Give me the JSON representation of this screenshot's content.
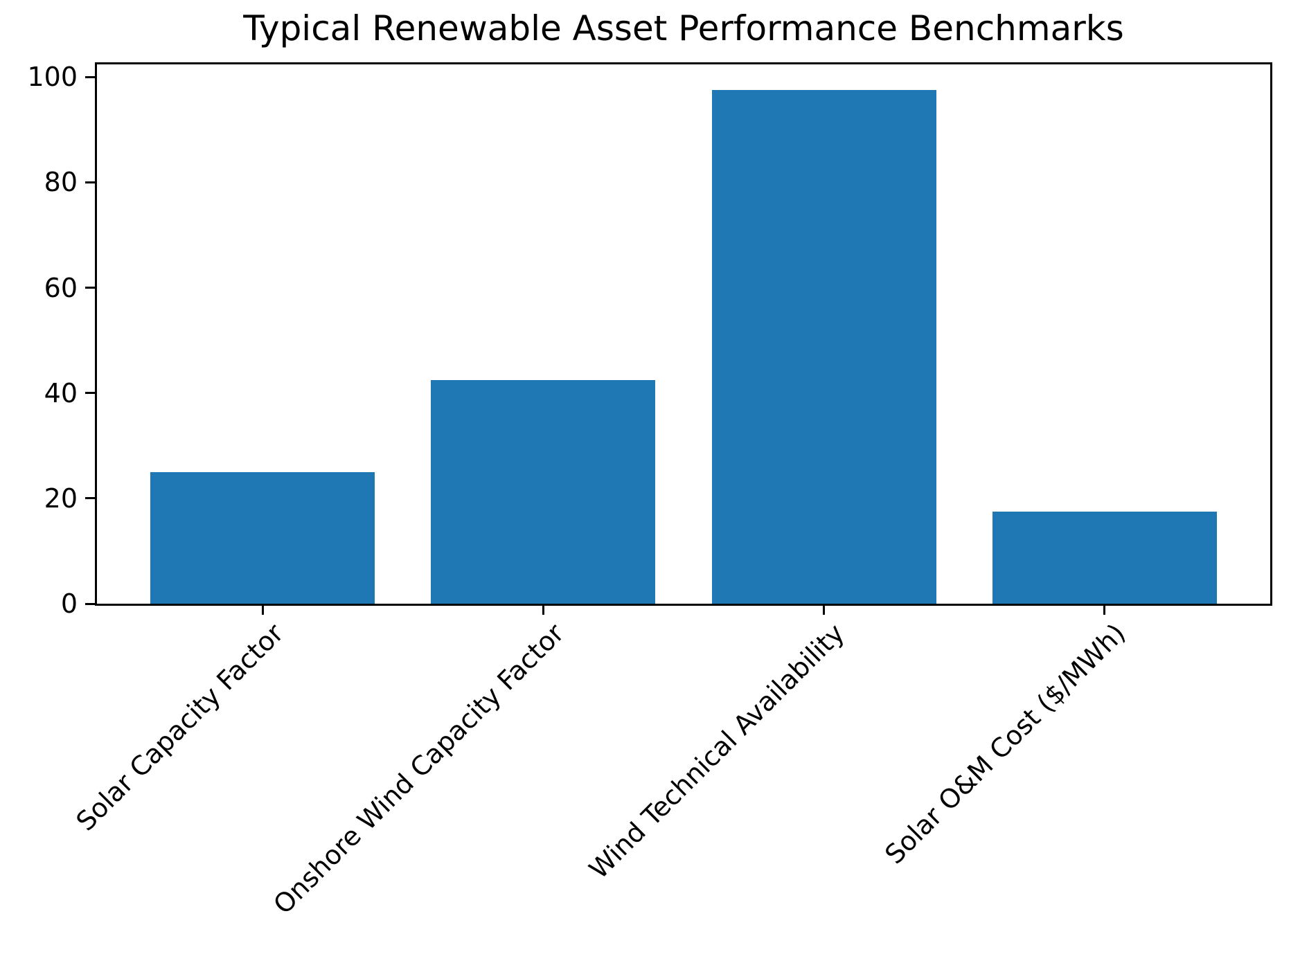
{
  "chart_data": {
    "type": "bar",
    "title": "Typical Renewable Asset Performance Benchmarks",
    "categories": [
      "Solar Capacity Factor",
      "Onshore Wind Capacity Factor",
      "Wind Technical Availability",
      "Solar O&M Cost ($/MWh)"
    ],
    "values": [
      25,
      42.5,
      97.5,
      17.5
    ],
    "xlabel": "",
    "ylabel": "",
    "ylim": [
      0,
      102.4
    ],
    "yticks": [
      0,
      20,
      40,
      60,
      80,
      100
    ],
    "bar_color": "#1f77b4",
    "bar_rel_width": 0.8,
    "x_margin": 0.59,
    "x_tick_rotation": 45,
    "grid": false,
    "legend": null
  }
}
